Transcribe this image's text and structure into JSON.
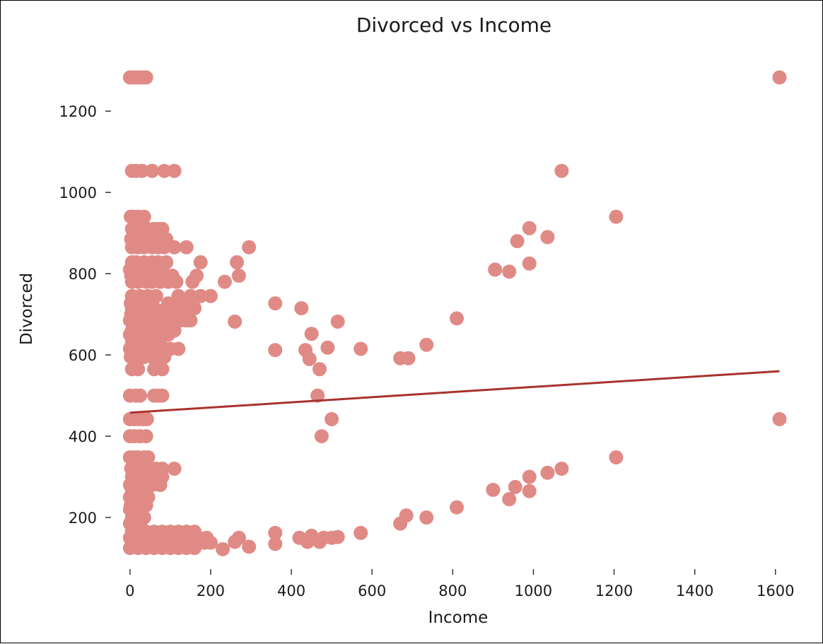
{
  "chart_data": {
    "type": "scatter",
    "title": "Divorced vs Income",
    "xlabel": "Income",
    "ylabel": "Divorced",
    "xlim": [
      -40,
      1660
    ],
    "ylim": [
      80,
      1350
    ],
    "xticks": [
      0,
      200,
      400,
      600,
      800,
      1000,
      1200,
      1400,
      1600
    ],
    "yticks": [
      200,
      400,
      600,
      800,
      1000,
      1200
    ],
    "grid": false,
    "colors": {
      "points": "#e08a86",
      "trendline": "#a8322d"
    },
    "trendline": {
      "x": [
        0,
        1610
      ],
      "y": [
        458,
        560
      ]
    },
    "points": [
      [
        0,
        1283
      ],
      [
        8,
        1283
      ],
      [
        16,
        1283
      ],
      [
        24,
        1283
      ],
      [
        32,
        1283
      ],
      [
        40,
        1283
      ],
      [
        1610,
        1283
      ],
      [
        5,
        1053
      ],
      [
        15,
        1053
      ],
      [
        30,
        1053
      ],
      [
        55,
        1053
      ],
      [
        85,
        1053
      ],
      [
        110,
        1053
      ],
      [
        1070,
        1053
      ],
      [
        2,
        940
      ],
      [
        10,
        940
      ],
      [
        20,
        940
      ],
      [
        35,
        940
      ],
      [
        1205,
        940
      ],
      [
        5,
        910
      ],
      [
        25,
        910
      ],
      [
        45,
        910
      ],
      [
        60,
        910
      ],
      [
        70,
        910
      ],
      [
        80,
        910
      ],
      [
        990,
        912
      ],
      [
        3,
        885
      ],
      [
        12,
        885
      ],
      [
        22,
        885
      ],
      [
        40,
        885
      ],
      [
        50,
        885
      ],
      [
        62,
        885
      ],
      [
        75,
        885
      ],
      [
        90,
        885
      ],
      [
        1035,
        890
      ],
      [
        960,
        880
      ],
      [
        5,
        865
      ],
      [
        20,
        865
      ],
      [
        35,
        865
      ],
      [
        55,
        865
      ],
      [
        70,
        865
      ],
      [
        85,
        865
      ],
      [
        110,
        865
      ],
      [
        140,
        865
      ],
      [
        295,
        865
      ],
      [
        5,
        828
      ],
      [
        15,
        828
      ],
      [
        35,
        828
      ],
      [
        55,
        828
      ],
      [
        70,
        828
      ],
      [
        90,
        828
      ],
      [
        175,
        828
      ],
      [
        265,
        828
      ],
      [
        990,
        825
      ],
      [
        0,
        810
      ],
      [
        10,
        810
      ],
      [
        25,
        810
      ],
      [
        45,
        810
      ],
      [
        60,
        810
      ],
      [
        80,
        810
      ],
      [
        905,
        810
      ],
      [
        940,
        805
      ],
      [
        3,
        795
      ],
      [
        15,
        795
      ],
      [
        30,
        795
      ],
      [
        50,
        795
      ],
      [
        65,
        795
      ],
      [
        85,
        795
      ],
      [
        105,
        795
      ],
      [
        165,
        795
      ],
      [
        270,
        795
      ],
      [
        5,
        780
      ],
      [
        20,
        780
      ],
      [
        40,
        780
      ],
      [
        55,
        780
      ],
      [
        75,
        780
      ],
      [
        95,
        780
      ],
      [
        115,
        780
      ],
      [
        155,
        780
      ],
      [
        235,
        780
      ],
      [
        5,
        745
      ],
      [
        25,
        745
      ],
      [
        45,
        745
      ],
      [
        65,
        745
      ],
      [
        120,
        745
      ],
      [
        150,
        745
      ],
      [
        175,
        745
      ],
      [
        200,
        745
      ],
      [
        2,
        727
      ],
      [
        12,
        727
      ],
      [
        30,
        727
      ],
      [
        55,
        727
      ],
      [
        95,
        727
      ],
      [
        110,
        727
      ],
      [
        125,
        727
      ],
      [
        145,
        727
      ],
      [
        360,
        727
      ],
      [
        5,
        715
      ],
      [
        20,
        715
      ],
      [
        40,
        715
      ],
      [
        60,
        715
      ],
      [
        90,
        715
      ],
      [
        100,
        715
      ],
      [
        130,
        715
      ],
      [
        160,
        715
      ],
      [
        425,
        715
      ],
      [
        3,
        700
      ],
      [
        15,
        700
      ],
      [
        35,
        700
      ],
      [
        60,
        700
      ],
      [
        95,
        700
      ],
      [
        115,
        700
      ],
      [
        145,
        700
      ],
      [
        0,
        685
      ],
      [
        12,
        685
      ],
      [
        28,
        685
      ],
      [
        50,
        685
      ],
      [
        75,
        685
      ],
      [
        100,
        685
      ],
      [
        125,
        685
      ],
      [
        140,
        685
      ],
      [
        150,
        685
      ],
      [
        260,
        682
      ],
      [
        515,
        682
      ],
      [
        810,
        690
      ],
      [
        5,
        660
      ],
      [
        20,
        660
      ],
      [
        40,
        660
      ],
      [
        60,
        660
      ],
      [
        85,
        660
      ],
      [
        110,
        660
      ],
      [
        0,
        650
      ],
      [
        15,
        650
      ],
      [
        35,
        650
      ],
      [
        55,
        650
      ],
      [
        95,
        650
      ],
      [
        450,
        652
      ],
      [
        5,
        630
      ],
      [
        20,
        630
      ],
      [
        40,
        630
      ],
      [
        60,
        630
      ],
      [
        75,
        630
      ],
      [
        0,
        615
      ],
      [
        15,
        615
      ],
      [
        30,
        615
      ],
      [
        50,
        615
      ],
      [
        80,
        615
      ],
      [
        100,
        615
      ],
      [
        120,
        615
      ],
      [
        360,
        612
      ],
      [
        435,
        612
      ],
      [
        490,
        618
      ],
      [
        572,
        615
      ],
      [
        735,
        625
      ],
      [
        2,
        595
      ],
      [
        15,
        595
      ],
      [
        35,
        595
      ],
      [
        55,
        595
      ],
      [
        70,
        595
      ],
      [
        85,
        595
      ],
      [
        445,
        590
      ],
      [
        670,
        592
      ],
      [
        690,
        592
      ],
      [
        5,
        565
      ],
      [
        20,
        565
      ],
      [
        60,
        565
      ],
      [
        80,
        565
      ],
      [
        470,
        565
      ],
      [
        0,
        500
      ],
      [
        15,
        500
      ],
      [
        25,
        500
      ],
      [
        60,
        500
      ],
      [
        70,
        500
      ],
      [
        80,
        500
      ],
      [
        465,
        500
      ],
      [
        0,
        442
      ],
      [
        10,
        442
      ],
      [
        22,
        442
      ],
      [
        32,
        442
      ],
      [
        42,
        442
      ],
      [
        500,
        442
      ],
      [
        1610,
        442
      ],
      [
        0,
        400
      ],
      [
        12,
        400
      ],
      [
        25,
        400
      ],
      [
        40,
        400
      ],
      [
        475,
        400
      ],
      [
        0,
        348
      ],
      [
        10,
        348
      ],
      [
        20,
        348
      ],
      [
        35,
        348
      ],
      [
        45,
        348
      ],
      [
        1205,
        348
      ],
      [
        3,
        320
      ],
      [
        15,
        320
      ],
      [
        30,
        320
      ],
      [
        50,
        320
      ],
      [
        65,
        320
      ],
      [
        80,
        320
      ],
      [
        110,
        320
      ],
      [
        1070,
        320
      ],
      [
        1035,
        310
      ],
      [
        990,
        300
      ],
      [
        5,
        300
      ],
      [
        20,
        300
      ],
      [
        40,
        300
      ],
      [
        60,
        300
      ],
      [
        80,
        300
      ],
      [
        0,
        280
      ],
      [
        12,
        280
      ],
      [
        25,
        280
      ],
      [
        40,
        280
      ],
      [
        55,
        280
      ],
      [
        75,
        280
      ],
      [
        955,
        275
      ],
      [
        5,
        268
      ],
      [
        15,
        268
      ],
      [
        30,
        268
      ],
      [
        900,
        268
      ],
      [
        990,
        265
      ],
      [
        0,
        250
      ],
      [
        12,
        250
      ],
      [
        28,
        250
      ],
      [
        45,
        250
      ],
      [
        940,
        245
      ],
      [
        2,
        230
      ],
      [
        12,
        230
      ],
      [
        25,
        230
      ],
      [
        40,
        230
      ],
      [
        0,
        220
      ],
      [
        15,
        220
      ],
      [
        30,
        220
      ],
      [
        810,
        225
      ],
      [
        5,
        200
      ],
      [
        20,
        200
      ],
      [
        35,
        200
      ],
      [
        685,
        205
      ],
      [
        735,
        200
      ],
      [
        0,
        185
      ],
      [
        15,
        185
      ],
      [
        25,
        185
      ],
      [
        670,
        185
      ],
      [
        5,
        165
      ],
      [
        20,
        165
      ],
      [
        40,
        165
      ],
      [
        60,
        165
      ],
      [
        80,
        165
      ],
      [
        100,
        165
      ],
      [
        120,
        165
      ],
      [
        140,
        165
      ],
      [
        160,
        165
      ],
      [
        360,
        162
      ],
      [
        572,
        162
      ],
      [
        0,
        150
      ],
      [
        15,
        150
      ],
      [
        30,
        150
      ],
      [
        50,
        150
      ],
      [
        70,
        150
      ],
      [
        90,
        150
      ],
      [
        110,
        150
      ],
      [
        130,
        150
      ],
      [
        150,
        150
      ],
      [
        170,
        150
      ],
      [
        190,
        150
      ],
      [
        270,
        150
      ],
      [
        420,
        150
      ],
      [
        450,
        155
      ],
      [
        480,
        150
      ],
      [
        500,
        150
      ],
      [
        515,
        152
      ],
      [
        5,
        138
      ],
      [
        25,
        138
      ],
      [
        45,
        138
      ],
      [
        65,
        138
      ],
      [
        85,
        138
      ],
      [
        105,
        138
      ],
      [
        125,
        138
      ],
      [
        145,
        138
      ],
      [
        165,
        138
      ],
      [
        185,
        138
      ],
      [
        200,
        138
      ],
      [
        260,
        140
      ],
      [
        360,
        135
      ],
      [
        440,
        140
      ],
      [
        470,
        140
      ],
      [
        0,
        125
      ],
      [
        20,
        125
      ],
      [
        40,
        125
      ],
      [
        60,
        125
      ],
      [
        80,
        125
      ],
      [
        100,
        125
      ],
      [
        120,
        125
      ],
      [
        140,
        125
      ],
      [
        160,
        125
      ],
      [
        230,
        122
      ],
      [
        295,
        128
      ]
    ]
  }
}
